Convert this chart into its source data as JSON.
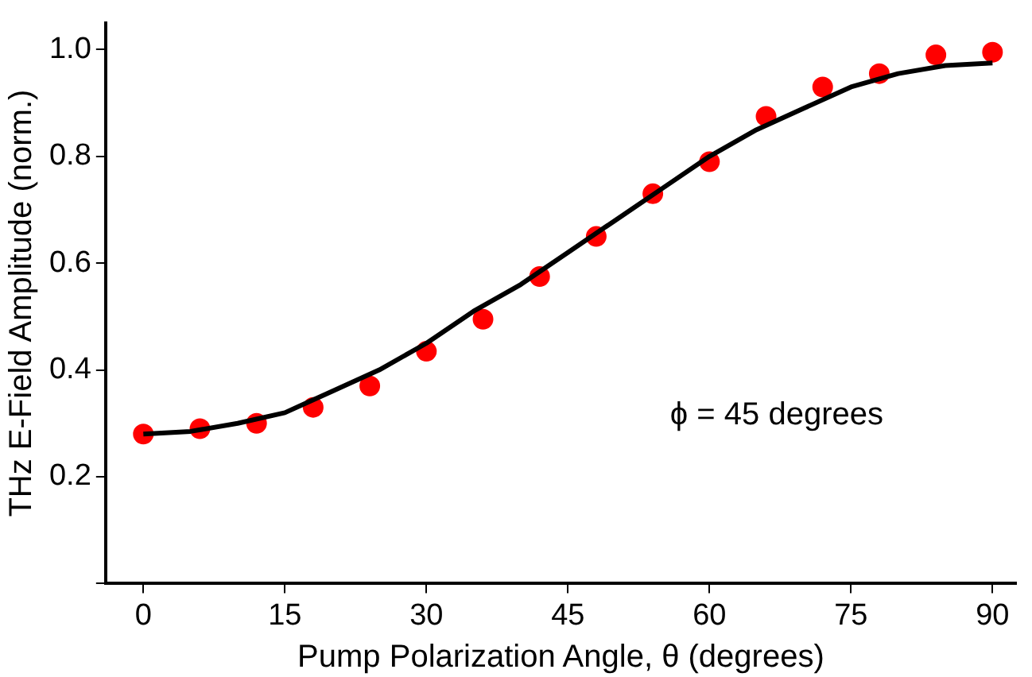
{
  "chart_data": {
    "type": "scatter",
    "xlabel": "Pump Polarization Angle, θ (degrees)",
    "ylabel": "THz E-Field Amplitude (norm.)",
    "annotations": [
      "ϕ = 45 degrees"
    ],
    "xlim": [
      -4,
      92.5
    ],
    "xticks": [
      0,
      15,
      30,
      45,
      60,
      75,
      90
    ],
    "ylim": [
      0,
      1.05
    ],
    "yticks": [
      {
        "value": 0,
        "label": null
      },
      0.2,
      0.4,
      0.6,
      0.8,
      {
        "value": 1,
        "label": "1.0"
      }
    ],
    "grid": false,
    "legend": false,
    "marker": "circle",
    "series": [
      {
        "color": "#ff0000",
        "x": [
          0,
          6,
          12,
          18,
          24,
          30,
          36,
          42,
          48,
          54,
          60,
          66,
          72,
          78,
          84,
          90
        ],
        "values": [
          0.28,
          0.29,
          0.3,
          0.33,
          0.37,
          0.435,
          0.495,
          0.575,
          0.65,
          0.73,
          0.79,
          0.875,
          0.93,
          0.955,
          0.99,
          0.995
        ]
      },
      {
        "type": "line",
        "color": "#000000",
        "marker": "none",
        "line_style": "solid",
        "x": [
          0,
          5,
          10,
          15,
          20,
          25,
          30,
          35,
          40,
          45,
          50,
          55,
          60,
          65,
          70,
          75,
          80,
          85,
          90
        ],
        "values": [
          0.28,
          0.285,
          0.3,
          0.32,
          0.36,
          0.4,
          0.45,
          0.51,
          0.56,
          0.62,
          0.68,
          0.74,
          0.8,
          0.85,
          0.89,
          0.93,
          0.955,
          0.97,
          0.975
        ]
      }
    ]
  }
}
